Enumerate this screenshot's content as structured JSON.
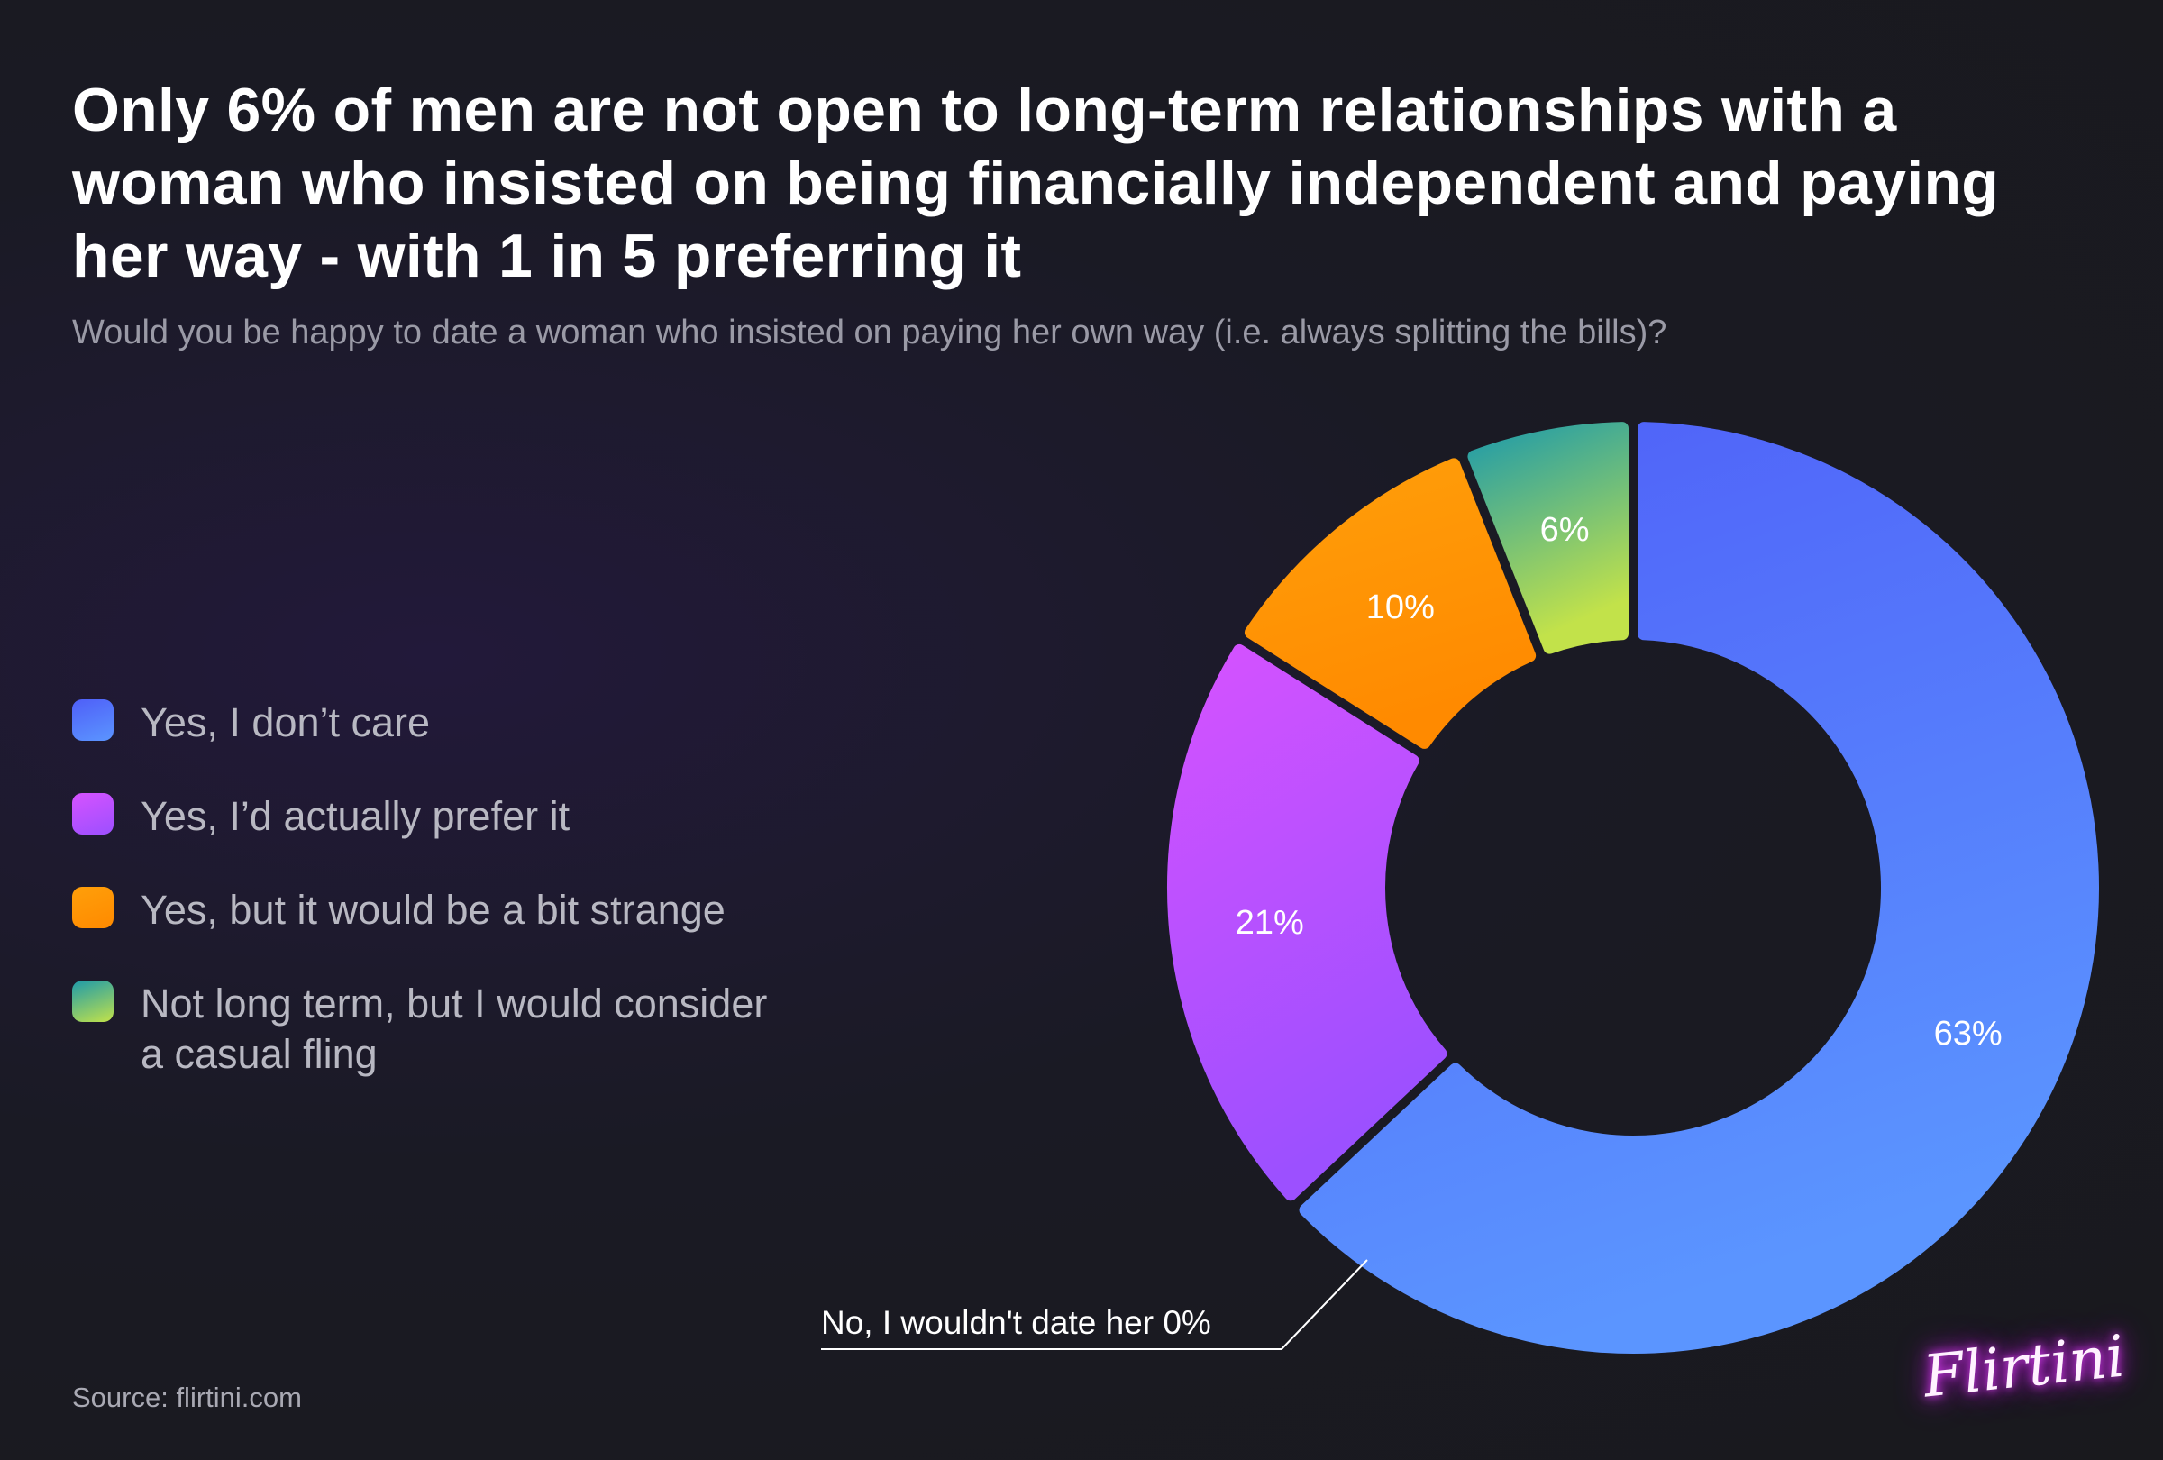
{
  "header": {
    "title": "Only 6% of men are not open to long-term relationships with a woman who insisted on being financially independent and paying her way - with 1 in 5 preferring it",
    "subtitle": "Would you be happy to date a woman who insisted on paying her own way (i.e. always splitting the bills)?"
  },
  "chart_data": {
    "type": "pie",
    "donut": true,
    "categories": [
      "Yes, I don’t care",
      "Yes, I’d actually prefer it",
      "Yes, but it would be a bit strange",
      "Not long term, but I would consider a casual fling",
      "No, I wouldn't date her"
    ],
    "values": [
      63,
      21,
      10,
      6,
      0
    ],
    "value_labels": [
      "63%",
      "21%",
      "10%",
      "6%",
      "0%"
    ],
    "colors": [
      [
        "#4f5ff8",
        "#5b95ff"
      ],
      [
        "#d652ff",
        "#9c50ff"
      ],
      [
        "#ff9f0a",
        "#ff8a00"
      ],
      [
        "#1e9aaa",
        "#c2e24a"
      ],
      [
        "#ffffff",
        "#ffffff"
      ]
    ],
    "callout": "No, I wouldn't date her 0%",
    "legend_position": "left"
  },
  "legend": {
    "items": [
      {
        "label": "Yes, I don’t care",
        "color_from": "#4f5ff8",
        "color_to": "#5b95ff"
      },
      {
        "label": "Yes, I’d actually prefer it",
        "color_from": "#d652ff",
        "color_to": "#9c50ff"
      },
      {
        "label": "Yes, but it would be a bit strange",
        "color_from": "#ff9f0a",
        "color_to": "#ff8a00"
      },
      {
        "label": "Not long term, but I would consider a casual fling",
        "color_from": "#1e9aaa",
        "color_to": "#c2e24a"
      }
    ]
  },
  "footer": {
    "source": "Source: flirtini.com",
    "logo": "Flirtini"
  }
}
